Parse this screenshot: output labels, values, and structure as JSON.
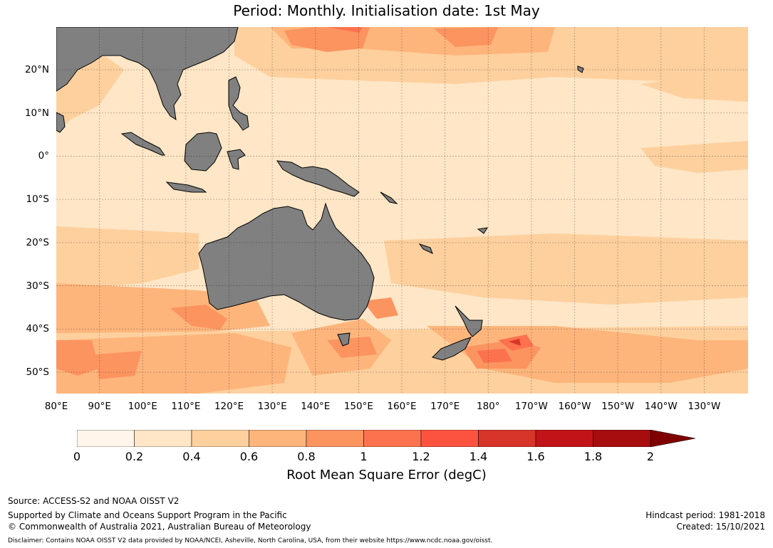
{
  "title": "Period: Monthly. Initialisation date: 1st May",
  "map": {
    "extent": {
      "lon_min": 80,
      "lon_max": 240,
      "lat_min": -55,
      "lat_max": 30
    },
    "lat_labels": [
      {
        "lat": 20,
        "label": "20°N"
      },
      {
        "lat": 10,
        "label": "10°N"
      },
      {
        "lat": 0,
        "label": "0°"
      },
      {
        "lat": -10,
        "label": "10°S"
      },
      {
        "lat": -20,
        "label": "20°S"
      },
      {
        "lat": -30,
        "label": "30°S"
      },
      {
        "lat": -40,
        "label": "40°S"
      },
      {
        "lat": -50,
        "label": "50°S"
      }
    ],
    "lon_labels": [
      {
        "lon": 80,
        "label": "80°E"
      },
      {
        "lon": 90,
        "label": "90°E"
      },
      {
        "lon": 100,
        "label": "100°E"
      },
      {
        "lon": 110,
        "label": "110°E"
      },
      {
        "lon": 120,
        "label": "120°E"
      },
      {
        "lon": 130,
        "label": "130°E"
      },
      {
        "lon": 140,
        "label": "140°E"
      },
      {
        "lon": 150,
        "label": "150°E"
      },
      {
        "lon": 160,
        "label": "160°E"
      },
      {
        "lon": 170,
        "label": "170°E"
      },
      {
        "lon": 180,
        "label": "180°"
      },
      {
        "lon": 190,
        "label": "170°W"
      },
      {
        "lon": 200,
        "label": "160°W"
      },
      {
        "lon": 210,
        "label": "150°W"
      },
      {
        "lon": 220,
        "label": "140°W"
      },
      {
        "lon": 230,
        "label": "130°W"
      }
    ],
    "grid": true,
    "land_color": "#808080",
    "ocean_base_color": "#fee6c6"
  },
  "colorbar": {
    "label": "Root Mean Square Error (degC)",
    "ticks": [
      "0",
      "0.2",
      "0.4",
      "0.6",
      "0.8",
      "1",
      "1.2",
      "1.4",
      "1.6",
      "1.8",
      "2"
    ],
    "colors": [
      "#fff5eb",
      "#fee6c6",
      "#fdd09e",
      "#fdb57c",
      "#fc9460",
      "#fc724f",
      "#fb5340",
      "#d8352a",
      "#c21418",
      "#a70c0f"
    ],
    "extend_color": "#7f0000",
    "extend": "max"
  },
  "footer": {
    "source": "Source: ACCESS-S2 and NOAA OISST V2",
    "support": "Supported by Climate and Oceans Support Program in the Pacific",
    "copyright": "© Commonwealth of Australia 2021, Australian Bureau of Meteorology",
    "hindcast": "Hindcast period: 1981-2018",
    "created": "Created: 15/10/2021",
    "disclaimer": "Disclaimer: Contains NOAA OISST V2 data provided by NOAA/NCEI, Asheville, North Carolina, USA, from their website https://www.ncdc.noaa.gov/oisst."
  }
}
